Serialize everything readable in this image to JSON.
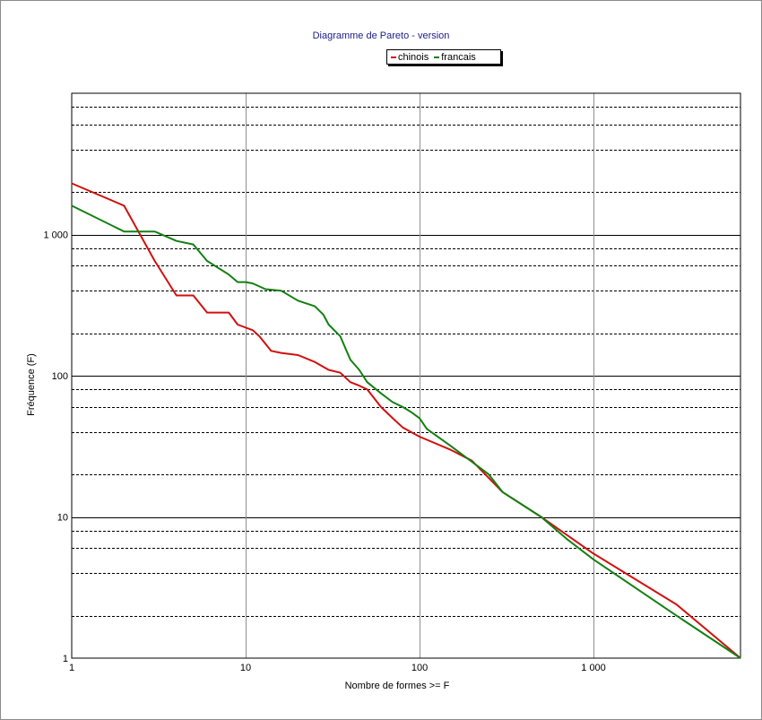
{
  "chart_data": {
    "type": "line",
    "title": "Diagramme de Pareto - version",
    "xlabel": "Nombre de formes >= F",
    "ylabel": "Fréquence (F)",
    "x_scale": "log",
    "y_scale": "log",
    "xlim": [
      1,
      7000
    ],
    "ylim": [
      1,
      10000
    ],
    "grid": true,
    "legend_position": "top-center",
    "x_ticks": [
      {
        "value": 1,
        "label": "1"
      },
      {
        "value": 10,
        "label": "10"
      },
      {
        "value": 100,
        "label": "100"
      },
      {
        "value": 1000,
        "label": "1 000"
      }
    ],
    "y_ticks": [
      {
        "value": 1,
        "label": "1"
      },
      {
        "value": 10,
        "label": "10"
      },
      {
        "value": 100,
        "label": "100"
      },
      {
        "value": 1000,
        "label": "1 000"
      }
    ],
    "series": [
      {
        "name": "chinois",
        "color": "#d01010",
        "points": [
          [
            1,
            2300
          ],
          [
            2,
            1600
          ],
          [
            3,
            650
          ],
          [
            4,
            370
          ],
          [
            5,
            370
          ],
          [
            6,
            280
          ],
          [
            8,
            280
          ],
          [
            9,
            230
          ],
          [
            11,
            210
          ],
          [
            12,
            190
          ],
          [
            14,
            150
          ],
          [
            16,
            145
          ],
          [
            20,
            140
          ],
          [
            25,
            125
          ],
          [
            30,
            110
          ],
          [
            35,
            105
          ],
          [
            40,
            90
          ],
          [
            45,
            85
          ],
          [
            50,
            80
          ],
          [
            60,
            60
          ],
          [
            70,
            50
          ],
          [
            80,
            43
          ],
          [
            100,
            37
          ],
          [
            150,
            30
          ],
          [
            200,
            25
          ],
          [
            300,
            15
          ],
          [
            500,
            10
          ],
          [
            1000,
            5.5
          ],
          [
            3000,
            2.4
          ],
          [
            7000,
            1
          ]
        ]
      },
      {
        "name": "francais",
        "color": "#128012",
        "points": [
          [
            1,
            1600
          ],
          [
            2,
            1050
          ],
          [
            3,
            1050
          ],
          [
            4,
            900
          ],
          [
            5,
            850
          ],
          [
            6,
            650
          ],
          [
            8,
            520
          ],
          [
            9,
            460
          ],
          [
            10,
            460
          ],
          [
            11,
            450
          ],
          [
            13,
            410
          ],
          [
            16,
            400
          ],
          [
            20,
            340
          ],
          [
            25,
            310
          ],
          [
            28,
            270
          ],
          [
            30,
            230
          ],
          [
            35,
            190
          ],
          [
            40,
            130
          ],
          [
            45,
            110
          ],
          [
            50,
            90
          ],
          [
            60,
            75
          ],
          [
            70,
            65
          ],
          [
            80,
            60
          ],
          [
            90,
            55
          ],
          [
            100,
            50
          ],
          [
            110,
            42
          ],
          [
            150,
            32
          ],
          [
            250,
            20
          ],
          [
            300,
            15
          ],
          [
            500,
            10
          ],
          [
            700,
            7
          ],
          [
            1000,
            5
          ],
          [
            3000,
            2
          ],
          [
            7000,
            1
          ]
        ]
      }
    ]
  }
}
